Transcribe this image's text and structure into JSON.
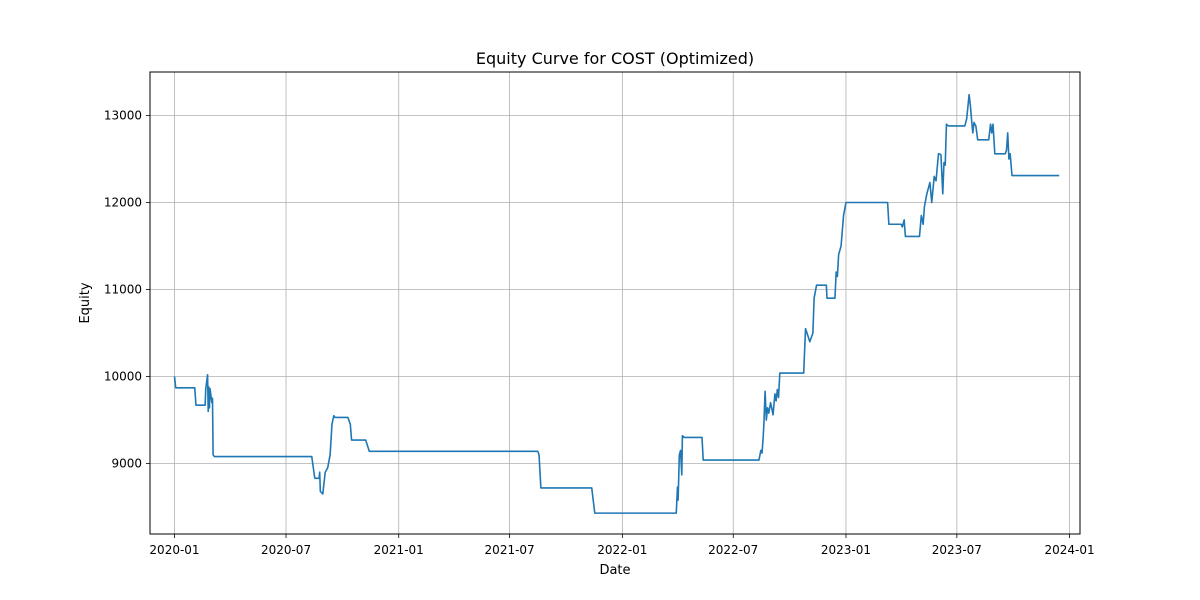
{
  "chart_data": {
    "type": "line",
    "title": "Equity Curve for COST (Optimized)",
    "xlabel": "Date",
    "ylabel": "Equity",
    "x_ticks": [
      "2020-01",
      "2020-07",
      "2021-01",
      "2021-07",
      "2022-01",
      "2022-07",
      "2023-01",
      "2023-07",
      "2024-01"
    ],
    "y_ticks": [
      9000,
      10000,
      11000,
      12000,
      13000
    ],
    "xlim": [
      "2019-11-22",
      "2024-01-18"
    ],
    "ylim": [
      8190,
      13500
    ],
    "grid": true,
    "series": [
      {
        "color": "#1f77b4",
        "points": [
          [
            "2020-01-01",
            10000
          ],
          [
            "2020-01-03",
            9870
          ],
          [
            "2020-02-03",
            9870
          ],
          [
            "2020-02-05",
            9670
          ],
          [
            "2020-02-20",
            9670
          ],
          [
            "2020-02-21",
            9860
          ],
          [
            "2020-02-24",
            10020
          ],
          [
            "2020-02-25",
            9600
          ],
          [
            "2020-02-26",
            9880
          ],
          [
            "2020-02-27",
            9640
          ],
          [
            "2020-02-28",
            9860
          ],
          [
            "2020-03-02",
            9700
          ],
          [
            "2020-03-03",
            9750
          ],
          [
            "2020-03-04",
            9100
          ],
          [
            "2020-03-06",
            9080
          ],
          [
            "2020-08-12",
            9080
          ],
          [
            "2020-08-17",
            8830
          ],
          [
            "2020-08-24",
            8830
          ],
          [
            "2020-08-25",
            8900
          ],
          [
            "2020-08-26",
            8680
          ],
          [
            "2020-08-30",
            8650
          ],
          [
            "2020-09-03",
            8900
          ],
          [
            "2020-09-07",
            8950
          ],
          [
            "2020-09-11",
            9100
          ],
          [
            "2020-09-14",
            9450
          ],
          [
            "2020-09-17",
            9550
          ],
          [
            "2020-09-19",
            9530
          ],
          [
            "2020-10-10",
            9530
          ],
          [
            "2020-10-14",
            9450
          ],
          [
            "2020-10-16",
            9270
          ],
          [
            "2020-11-08",
            9270
          ],
          [
            "2020-11-14",
            9140
          ],
          [
            "2021-08-16",
            9140
          ],
          [
            "2021-08-18",
            9100
          ],
          [
            "2021-08-21",
            8720
          ],
          [
            "2021-11-12",
            8720
          ],
          [
            "2021-11-17",
            8430
          ],
          [
            "2022-03-30",
            8430
          ],
          [
            "2022-04-01",
            8730
          ],
          [
            "2022-04-02",
            8580
          ],
          [
            "2022-04-04",
            9100
          ],
          [
            "2022-04-06",
            9150
          ],
          [
            "2022-04-08",
            8870
          ],
          [
            "2022-04-09",
            9320
          ],
          [
            "2022-04-12",
            9300
          ],
          [
            "2022-05-11",
            9300
          ],
          [
            "2022-05-13",
            9040
          ],
          [
            "2022-08-12",
            9040
          ],
          [
            "2022-08-15",
            9150
          ],
          [
            "2022-08-17",
            9120
          ],
          [
            "2022-08-19",
            9320
          ],
          [
            "2022-08-20",
            9450
          ],
          [
            "2022-08-22",
            9830
          ],
          [
            "2022-08-24",
            9500
          ],
          [
            "2022-08-26",
            9640
          ],
          [
            "2022-08-28",
            9580
          ],
          [
            "2022-08-31",
            9700
          ],
          [
            "2022-09-04",
            9560
          ],
          [
            "2022-09-07",
            9800
          ],
          [
            "2022-09-09",
            9720
          ],
          [
            "2022-09-11",
            9850
          ],
          [
            "2022-09-13",
            9760
          ],
          [
            "2022-09-15",
            10040
          ],
          [
            "2022-10-24",
            10040
          ],
          [
            "2022-10-27",
            10550
          ],
          [
            "2022-11-03",
            10400
          ],
          [
            "2022-11-08",
            10500
          ],
          [
            "2022-11-10",
            10900
          ],
          [
            "2022-11-14",
            11050
          ],
          [
            "2022-11-30",
            11050
          ],
          [
            "2022-12-01",
            10900
          ],
          [
            "2022-12-14",
            10900
          ],
          [
            "2022-12-16",
            11200
          ],
          [
            "2022-12-18",
            11150
          ],
          [
            "2022-12-20",
            11400
          ],
          [
            "2022-12-24",
            11500
          ],
          [
            "2022-12-28",
            11850
          ],
          [
            "2023-01-01",
            12000
          ],
          [
            "2023-01-04",
            12000
          ],
          [
            "2023-03-10",
            12000
          ],
          [
            "2023-03-12",
            11750
          ],
          [
            "2023-04-01",
            11750
          ],
          [
            "2023-04-03",
            11720
          ],
          [
            "2023-04-06",
            11800
          ],
          [
            "2023-04-08",
            11610
          ],
          [
            "2023-05-01",
            11610
          ],
          [
            "2023-05-04",
            11850
          ],
          [
            "2023-05-07",
            11750
          ],
          [
            "2023-05-09",
            11950
          ],
          [
            "2023-05-13",
            12100
          ],
          [
            "2023-05-18",
            12230
          ],
          [
            "2023-05-21",
            12000
          ],
          [
            "2023-05-25",
            12300
          ],
          [
            "2023-05-28",
            12250
          ],
          [
            "2023-06-01",
            12560
          ],
          [
            "2023-06-05",
            12550
          ],
          [
            "2023-06-08",
            12100
          ],
          [
            "2023-06-10",
            12460
          ],
          [
            "2023-06-12",
            12430
          ],
          [
            "2023-06-14",
            12900
          ],
          [
            "2023-06-17",
            12880
          ],
          [
            "2023-07-14",
            12880
          ],
          [
            "2023-07-17",
            12960
          ],
          [
            "2023-07-19",
            13100
          ],
          [
            "2023-07-21",
            13240
          ],
          [
            "2023-07-23",
            13120
          ],
          [
            "2023-07-25",
            12950
          ],
          [
            "2023-07-27",
            12800
          ],
          [
            "2023-07-29",
            12920
          ],
          [
            "2023-08-01",
            12880
          ],
          [
            "2023-08-04",
            12720
          ],
          [
            "2023-08-22",
            12720
          ],
          [
            "2023-08-25",
            12900
          ],
          [
            "2023-08-27",
            12800
          ],
          [
            "2023-08-29",
            12900
          ],
          [
            "2023-09-01",
            12560
          ],
          [
            "2023-09-18",
            12560
          ],
          [
            "2023-09-20",
            12600
          ],
          [
            "2023-09-22",
            12800
          ],
          [
            "2023-09-24",
            12500
          ],
          [
            "2023-09-26",
            12560
          ],
          [
            "2023-09-29",
            12310
          ],
          [
            "2023-12-15",
            12310
          ]
        ]
      }
    ]
  }
}
